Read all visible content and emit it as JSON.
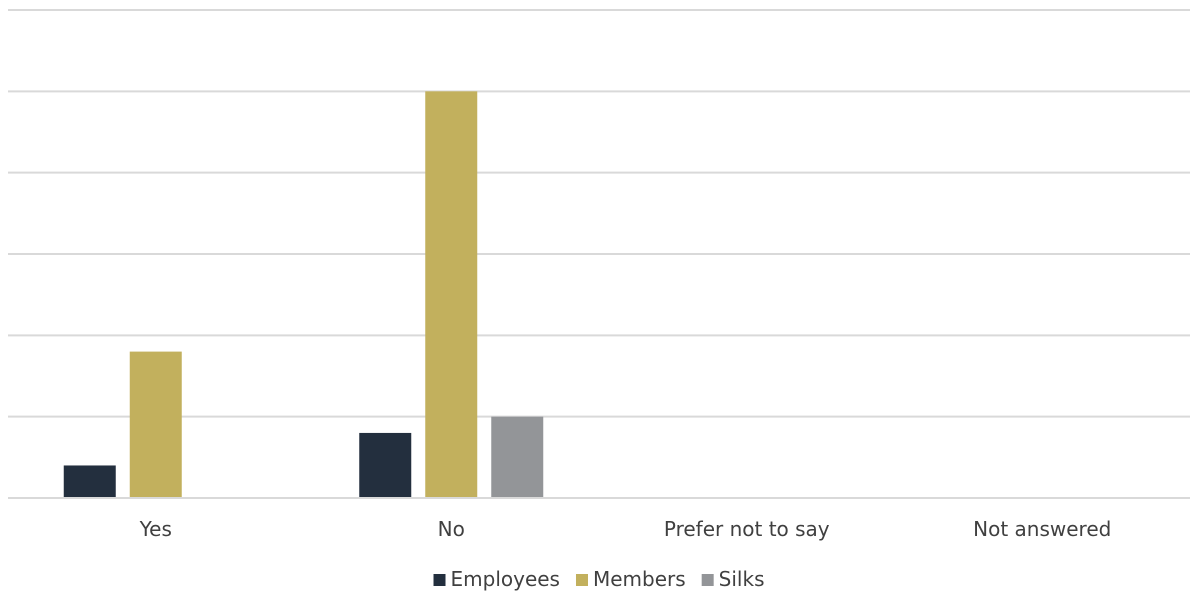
{
  "chart_data": {
    "type": "bar",
    "categories": [
      "Yes",
      "No",
      "Prefer not to say",
      "Not answered"
    ],
    "series": [
      {
        "name": "Employees",
        "color": "#232f3e",
        "values": [
          2,
          4,
          0,
          0
        ]
      },
      {
        "name": "Members",
        "color": "#c2b05d",
        "values": [
          9,
          25,
          0,
          0
        ]
      },
      {
        "name": "Silks",
        "color": "#939598",
        "values": [
          0,
          5,
          0,
          0
        ]
      }
    ],
    "ylim": [
      0,
      30
    ],
    "y_gridline_step": 5,
    "grid": true,
    "legend_position": "bottom"
  }
}
